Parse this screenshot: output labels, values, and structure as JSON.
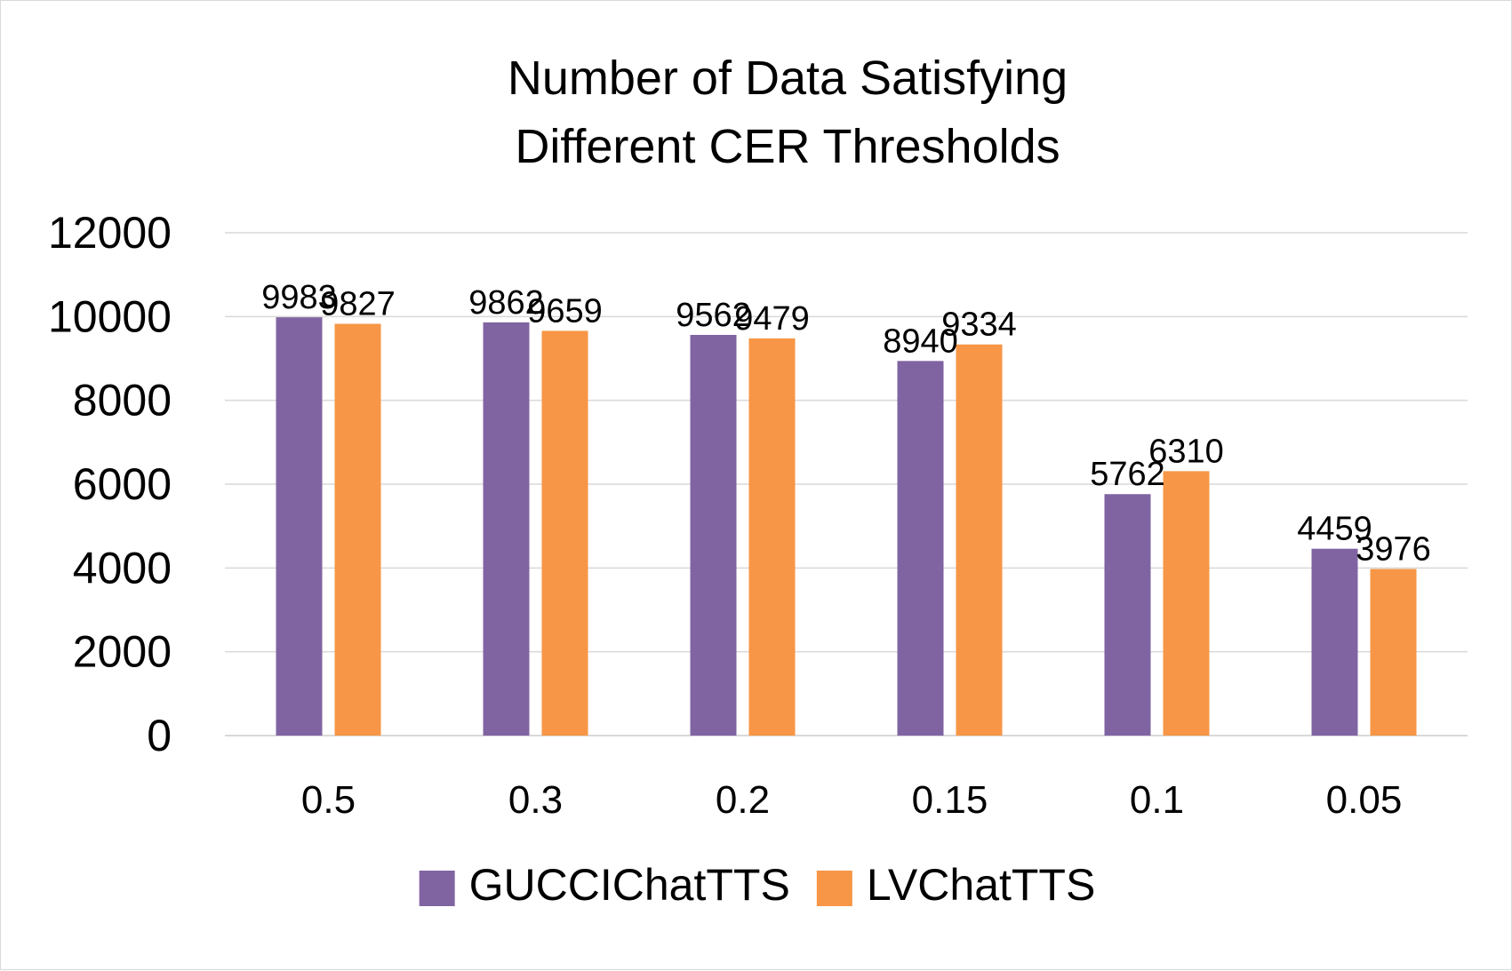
{
  "chart_data": {
    "type": "bar",
    "title": "Number of Data Satisfying Different CER Thresholds",
    "title_lines": [
      "Number of Data Satisfying",
      "Different CER Thresholds"
    ],
    "xlabel": "",
    "ylabel": "",
    "categories": [
      "0.5",
      "0.3",
      "0.2",
      "0.15",
      "0.1",
      "0.05"
    ],
    "series": [
      {
        "name": "GUCCIChatTTS",
        "color": "#8064a2",
        "values": [
          9983,
          9862,
          9562,
          8940,
          5762,
          4459
        ]
      },
      {
        "name": "LVChatTTS",
        "color": "#f79646",
        "values": [
          9827,
          9659,
          9479,
          9334,
          6310,
          3976
        ]
      }
    ],
    "ylim": [
      0,
      12000
    ],
    "yticks": [
      0,
      2000,
      4000,
      6000,
      8000,
      10000,
      12000
    ],
    "grid": true,
    "grid_color": "#d9d9d9",
    "legend_position": "bottom",
    "data_labels": true
  }
}
